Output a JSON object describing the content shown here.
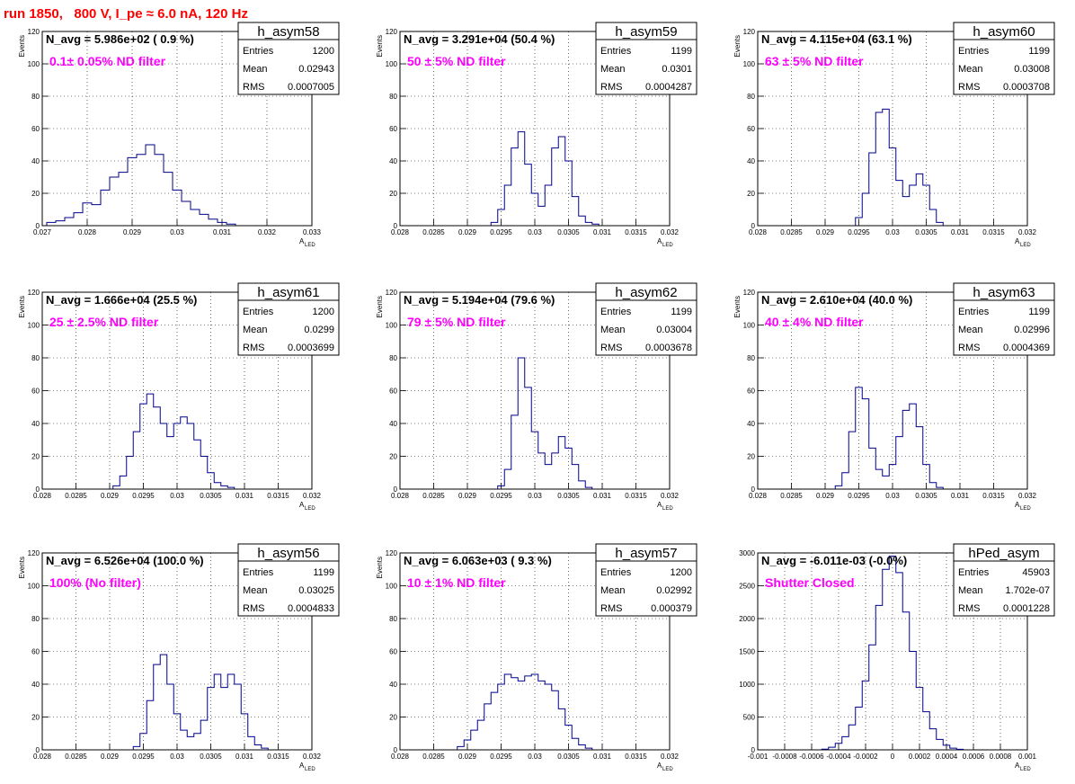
{
  "figure": {
    "title": "run 1850,   800 V, I_pe ≈ 6.0 nA, 120 Hz",
    "title_color": "#ff0000",
    "histogram_color": "#00008b",
    "label_color": "#ff00ff",
    "stat_labels": [
      "Entries",
      "Mean",
      "RMS"
    ],
    "ylabel": "Events"
  },
  "chart_data": [
    {
      "type": "bar",
      "name": "h_asym58",
      "navg": "N_avg = 5.986e+02 ( 0.9 %)",
      "filter_label": "0.1± 0.05% ND filter",
      "stats": {
        "entries": "1200",
        "mean": "0.02943",
        "rms": "0.0007005"
      },
      "xlabel": "A",
      "xlabel_sub": "LED",
      "ylabel": "Events",
      "xlim": [
        0.027,
        0.033
      ],
      "ylim": [
        0,
        120
      ],
      "xticks": [
        "0.027",
        "0.028",
        "0.029",
        "0.03",
        "0.031",
        "0.032",
        "0.033"
      ],
      "yticks": [
        "0",
        "20",
        "40",
        "60",
        "80",
        "100",
        "120"
      ],
      "grid": true,
      "x": [
        0.0272,
        0.0274,
        0.0276,
        0.0278,
        0.028,
        0.0282,
        0.0284,
        0.0286,
        0.0288,
        0.029,
        0.0292,
        0.0294,
        0.0296,
        0.0298,
        0.03,
        0.0302,
        0.0304,
        0.0306,
        0.0308,
        0.031,
        0.0312
      ],
      "values": [
        2,
        3,
        5,
        8,
        14,
        13,
        22,
        30,
        33,
        42,
        44,
        50,
        44,
        33,
        22,
        15,
        10,
        7,
        4,
        2,
        1
      ]
    },
    {
      "type": "bar",
      "name": "h_asym59",
      "navg": "N_avg = 3.291e+04 (50.4 %)",
      "filter_label": "50 ± 5% ND filter",
      "stats": {
        "entries": "1199",
        "mean": "0.0301",
        "rms": "0.0004287"
      },
      "xlabel": "A",
      "xlabel_sub": "LED",
      "ylabel": "Events",
      "xlim": [
        0.028,
        0.032
      ],
      "ylim": [
        0,
        120
      ],
      "xticks": [
        "0.028",
        "0.0285",
        "0.029",
        "0.0295",
        "0.03",
        "0.0305",
        "0.031",
        "0.0315",
        "0.032"
      ],
      "yticks": [
        "0",
        "20",
        "40",
        "60",
        "80",
        "100",
        "120"
      ],
      "grid": true,
      "x": [
        0.0294,
        0.0295,
        0.0296,
        0.0297,
        0.0298,
        0.0299,
        0.03,
        0.0301,
        0.0302,
        0.0303,
        0.0304,
        0.0305,
        0.0306,
        0.0307,
        0.0308,
        0.0309
      ],
      "values": [
        2,
        10,
        25,
        48,
        58,
        38,
        20,
        12,
        25,
        48,
        55,
        40,
        18,
        6,
        2,
        1
      ]
    },
    {
      "type": "bar",
      "name": "h_asym60",
      "navg": "N_avg = 4.115e+04 (63.1 %)",
      "filter_label": "63 ± 5% ND filter",
      "stats": {
        "entries": "1199",
        "mean": "0.03008",
        "rms": "0.0003708"
      },
      "xlabel": "A",
      "xlabel_sub": "LED",
      "ylabel": "Events",
      "xlim": [
        0.028,
        0.032
      ],
      "ylim": [
        0,
        120
      ],
      "xticks": [
        "0.028",
        "0.0285",
        "0.029",
        "0.0295",
        "0.03",
        "0.0305",
        "0.031",
        "0.0315",
        "0.032"
      ],
      "yticks": [
        "0",
        "20",
        "40",
        "60",
        "80",
        "100",
        "120"
      ],
      "grid": true,
      "x": [
        0.0295,
        0.0296,
        0.0297,
        0.0298,
        0.0299,
        0.03,
        0.0301,
        0.0302,
        0.0303,
        0.0304,
        0.0305,
        0.0306,
        0.0307
      ],
      "values": [
        5,
        20,
        45,
        70,
        72,
        48,
        28,
        18,
        25,
        32,
        25,
        10,
        2
      ]
    },
    {
      "type": "bar",
      "name": "h_asym61",
      "navg": "N_avg = 1.666e+04 (25.5 %)",
      "filter_label": "25 ± 2.5% ND filter",
      "stats": {
        "entries": "1200",
        "mean": "0.0299",
        "rms": "0.0003699"
      },
      "xlabel": "A",
      "xlabel_sub": "LED",
      "ylabel": "Events",
      "xlim": [
        0.028,
        0.032
      ],
      "ylim": [
        0,
        120
      ],
      "xticks": [
        "0.028",
        "0.0285",
        "0.029",
        "0.0295",
        "0.03",
        "0.0305",
        "0.031",
        "0.0315",
        "0.032"
      ],
      "yticks": [
        "0",
        "20",
        "40",
        "60",
        "80",
        "100",
        "120"
      ],
      "grid": true,
      "x": [
        0.0291,
        0.0292,
        0.0293,
        0.0294,
        0.0295,
        0.0296,
        0.0297,
        0.0298,
        0.0299,
        0.03,
        0.0301,
        0.0302,
        0.0303,
        0.0304,
        0.0305,
        0.0306,
        0.0307,
        0.0308
      ],
      "values": [
        2,
        8,
        20,
        35,
        52,
        58,
        50,
        40,
        32,
        40,
        44,
        40,
        30,
        20,
        10,
        4,
        2,
        1
      ]
    },
    {
      "type": "bar",
      "name": "h_asym62",
      "navg": "N_avg = 5.194e+04 (79.6 %)",
      "filter_label": "79 ± 5% ND filter",
      "stats": {
        "entries": "1199",
        "mean": "0.03004",
        "rms": "0.0003678"
      },
      "xlabel": "A",
      "xlabel_sub": "LED",
      "ylabel": "Events",
      "xlim": [
        0.028,
        0.032
      ],
      "ylim": [
        0,
        120
      ],
      "xticks": [
        "0.028",
        "0.0285",
        "0.029",
        "0.0295",
        "0.03",
        "0.0305",
        "0.031",
        "0.0315",
        "0.032"
      ],
      "yticks": [
        "0",
        "20",
        "40",
        "60",
        "80",
        "100",
        "120"
      ],
      "grid": true,
      "x": [
        0.0295,
        0.0296,
        0.0297,
        0.0298,
        0.0299,
        0.03,
        0.0301,
        0.0302,
        0.0303,
        0.0304,
        0.0305,
        0.0306,
        0.0307,
        0.0308
      ],
      "values": [
        2,
        12,
        45,
        80,
        62,
        35,
        22,
        15,
        22,
        32,
        25,
        15,
        5,
        1
      ]
    },
    {
      "type": "bar",
      "name": "h_asym63",
      "navg": "N_avg = 2.610e+04 (40.0 %)",
      "filter_label": "40 ± 4% ND filter",
      "stats": {
        "entries": "1199",
        "mean": "0.02996",
        "rms": "0.0004369"
      },
      "xlabel": "A",
      "xlabel_sub": "LED",
      "ylabel": "Events",
      "xlim": [
        0.028,
        0.032
      ],
      "ylim": [
        0,
        120
      ],
      "xticks": [
        "0.028",
        "0.0285",
        "0.029",
        "0.0295",
        "0.03",
        "0.0305",
        "0.031",
        "0.0315",
        "0.032"
      ],
      "yticks": [
        "0",
        "20",
        "40",
        "60",
        "80",
        "100",
        "120"
      ],
      "grid": true,
      "x": [
        0.0292,
        0.0293,
        0.0294,
        0.0295,
        0.0296,
        0.0297,
        0.0298,
        0.0299,
        0.03,
        0.0301,
        0.0302,
        0.0303,
        0.0304,
        0.0305,
        0.0306,
        0.0307
      ],
      "values": [
        2,
        10,
        35,
        62,
        55,
        25,
        12,
        8,
        15,
        32,
        48,
        52,
        38,
        15,
        4,
        1
      ]
    },
    {
      "type": "bar",
      "name": "h_asym56",
      "navg": "N_avg = 6.526e+04 (100.0 %)",
      "filter_label": "100% (No filter)",
      "stats": {
        "entries": "1199",
        "mean": "0.03025",
        "rms": "0.0004833"
      },
      "xlabel": "A",
      "xlabel_sub": "LED",
      "ylabel": "Events",
      "xlim": [
        0.028,
        0.032
      ],
      "ylim": [
        0,
        120
      ],
      "xticks": [
        "0.028",
        "0.0285",
        "0.029",
        "0.0295",
        "0.03",
        "0.0305",
        "0.031",
        "0.0315",
        "0.032"
      ],
      "yticks": [
        "0",
        "20",
        "40",
        "60",
        "80",
        "100",
        "120"
      ],
      "grid": true,
      "x": [
        0.0294,
        0.0295,
        0.0296,
        0.0297,
        0.0298,
        0.0299,
        0.03,
        0.0301,
        0.0302,
        0.0303,
        0.0304,
        0.0305,
        0.0306,
        0.0307,
        0.0308,
        0.0309,
        0.031,
        0.0311,
        0.0312,
        0.0313
      ],
      "values": [
        2,
        10,
        30,
        52,
        58,
        40,
        22,
        12,
        8,
        10,
        18,
        38,
        46,
        38,
        46,
        40,
        22,
        8,
        3,
        1
      ]
    },
    {
      "type": "bar",
      "name": "h_asym57",
      "navg": "N_avg = 6.063e+03 ( 9.3 %)",
      "filter_label": "10 ± 1% ND filter",
      "stats": {
        "entries": "1200",
        "mean": "0.02992",
        "rms": "0.000379"
      },
      "xlabel": "A",
      "xlabel_sub": "LED",
      "ylabel": "Events",
      "xlim": [
        0.028,
        0.032
      ],
      "ylim": [
        0,
        120
      ],
      "xticks": [
        "0.028",
        "0.0285",
        "0.029",
        "0.0295",
        "0.03",
        "0.0305",
        "0.031",
        "0.0315",
        "0.032"
      ],
      "yticks": [
        "0",
        "20",
        "40",
        "60",
        "80",
        "100",
        "120"
      ],
      "grid": true,
      "x": [
        0.0289,
        0.029,
        0.0291,
        0.0292,
        0.0293,
        0.0294,
        0.0295,
        0.0296,
        0.0297,
        0.0298,
        0.0299,
        0.03,
        0.0301,
        0.0302,
        0.0303,
        0.0304,
        0.0305,
        0.0306,
        0.0307,
        0.0308
      ],
      "values": [
        2,
        6,
        12,
        18,
        28,
        35,
        40,
        46,
        44,
        42,
        45,
        46,
        42,
        40,
        36,
        25,
        15,
        7,
        3,
        1
      ]
    },
    {
      "type": "bar",
      "name": "hPed_asym",
      "navg": "N_avg = -6.011e-03 (-0.0%)",
      "filter_label": "Shutter Closed",
      "stats": {
        "entries": "45903",
        "mean": "1.702e-07",
        "rms": "0.0001228"
      },
      "xlabel": "A",
      "xlabel_sub": "LED",
      "ylabel": "",
      "xlim": [
        -0.001,
        0.001
      ],
      "ylim": [
        0,
        3000
      ],
      "xticks": [
        "-0.001",
        "-0.0008",
        "-0.0006",
        "-0.0004",
        "-0.0002",
        "0",
        "0.0002",
        "0.0004",
        "0.0006",
        "0.0008",
        "0.001"
      ],
      "yticks": [
        "0",
        "500",
        "1000",
        "1500",
        "2000",
        "2500",
        "3000"
      ],
      "grid": true,
      "x": [
        -0.0005,
        -0.00045,
        -0.0004,
        -0.00035,
        -0.0003,
        -0.00025,
        -0.0002,
        -0.00015,
        -0.0001,
        -5e-05,
        0.0,
        5e-05,
        0.0001,
        0.00015,
        0.0002,
        0.00025,
        0.0003,
        0.00035,
        0.0004,
        0.00045,
        0.0005
      ],
      "values": [
        10,
        40,
        100,
        200,
        380,
        650,
        1050,
        1600,
        2200,
        2750,
        2950,
        2700,
        2100,
        1500,
        950,
        580,
        320,
        160,
        70,
        25,
        8
      ]
    }
  ]
}
